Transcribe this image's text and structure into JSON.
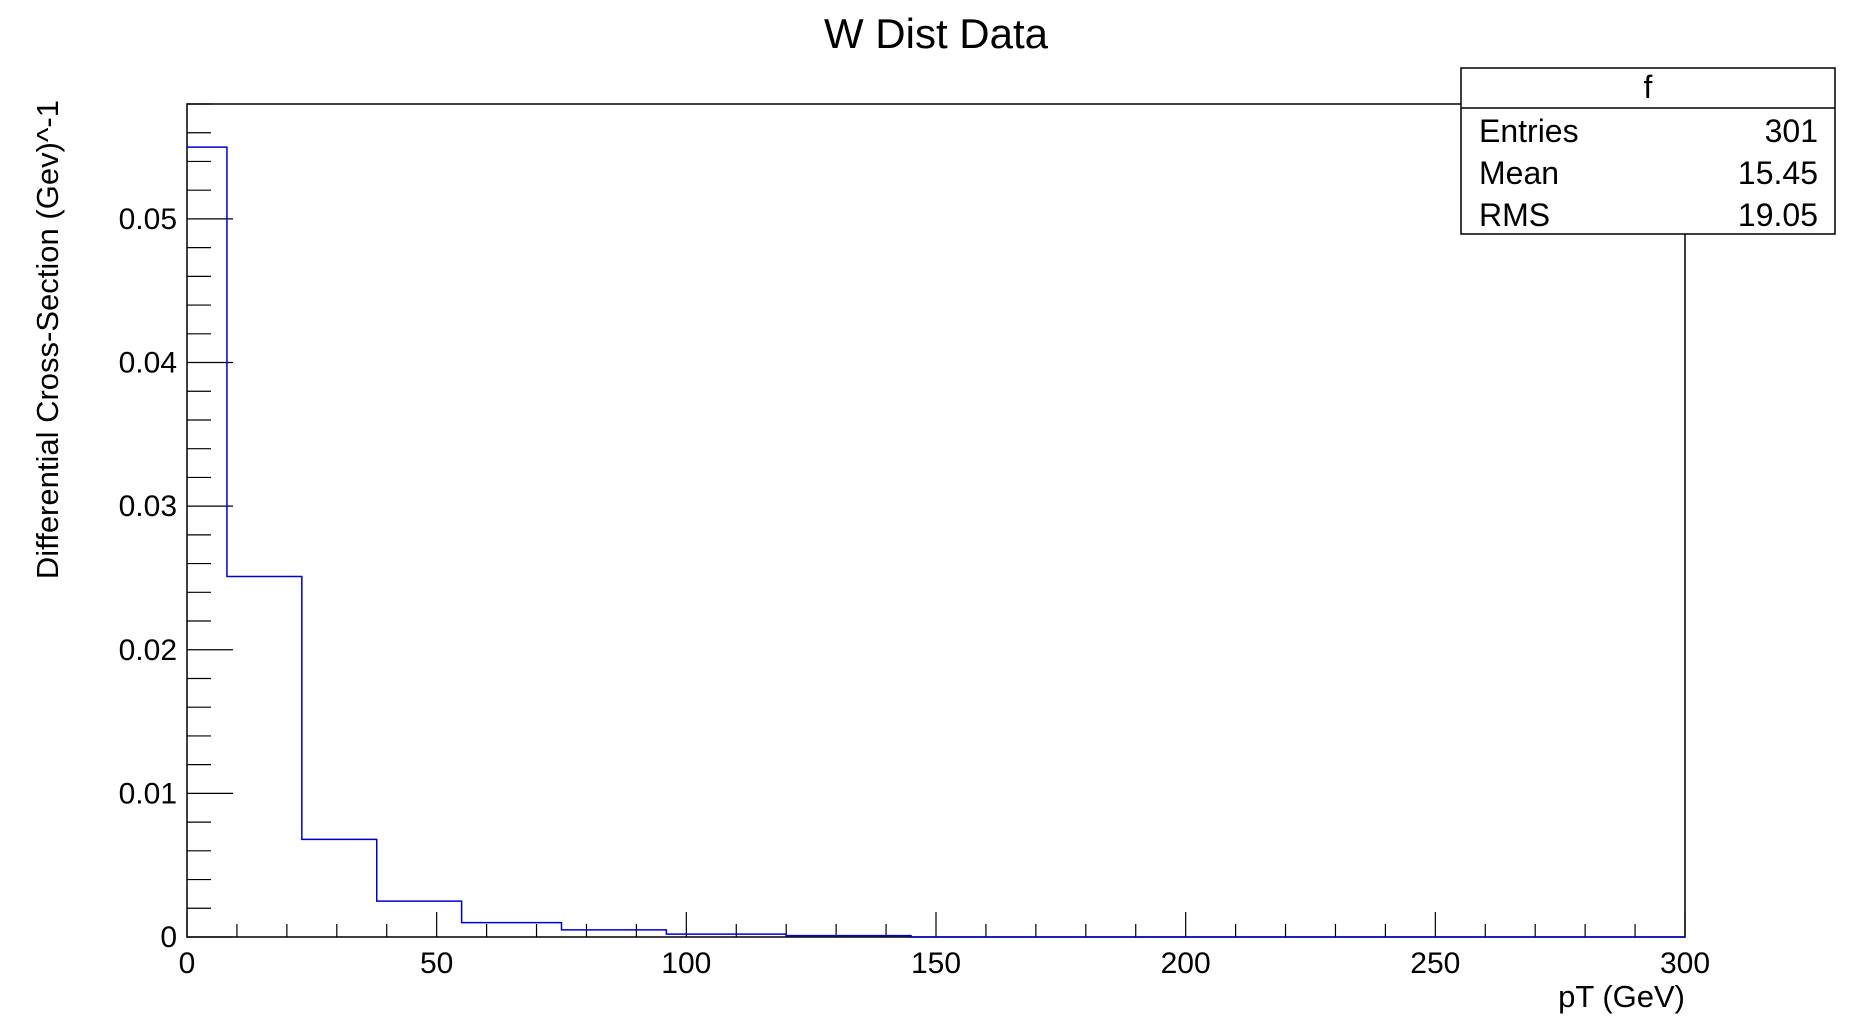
{
  "chart_data": {
    "type": "bar",
    "title": "W Dist Data",
    "xlabel": "pT (GeV)",
    "ylabel": "Differential Cross-Section (Gev)^-1",
    "xlim": [
      0,
      300
    ],
    "ylim": [
      0,
      0.058
    ],
    "x_ticks": [
      "0",
      "50",
      "100",
      "150",
      "200",
      "250",
      "300"
    ],
    "y_ticks": [
      "0",
      "0.01",
      "0.02",
      "0.03",
      "0.04",
      "0.05"
    ],
    "grid": false,
    "series_color": "#0000cc",
    "bins": [
      {
        "x_low": 0,
        "x_high": 8,
        "value": 0.055
      },
      {
        "x_low": 8,
        "x_high": 23,
        "value": 0.0251
      },
      {
        "x_low": 23,
        "x_high": 38,
        "value": 0.0068
      },
      {
        "x_low": 38,
        "x_high": 55,
        "value": 0.0025
      },
      {
        "x_low": 55,
        "x_high": 75,
        "value": 0.001
      },
      {
        "x_low": 75,
        "x_high": 96,
        "value": 0.0005
      },
      {
        "x_low": 96,
        "x_high": 120,
        "value": 0.0002
      },
      {
        "x_low": 120,
        "x_high": 145,
        "value": 0.0001
      },
      {
        "x_low": 145,
        "x_high": 300,
        "value": 0.0
      }
    ],
    "stats_box": {
      "name": "f",
      "rows": [
        {
          "label": "Entries",
          "value": "301"
        },
        {
          "label": "Mean",
          "value": "15.45"
        },
        {
          "label": "RMS",
          "value": "19.05"
        }
      ]
    }
  }
}
